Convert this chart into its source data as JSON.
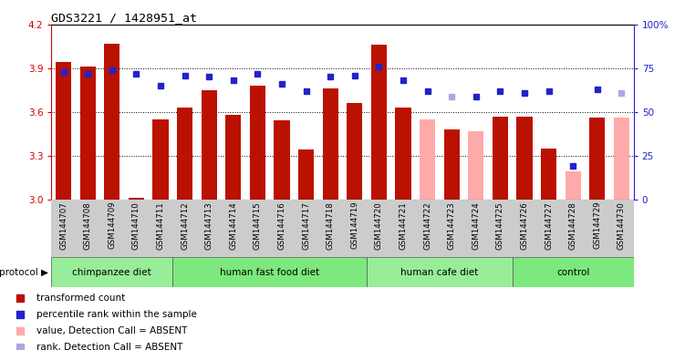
{
  "title": "GDS3221 / 1428951_at",
  "samples": [
    "GSM144707",
    "GSM144708",
    "GSM144709",
    "GSM144710",
    "GSM144711",
    "GSM144712",
    "GSM144713",
    "GSM144714",
    "GSM144715",
    "GSM144716",
    "GSM144717",
    "GSM144718",
    "GSM144719",
    "GSM144720",
    "GSM144721",
    "GSM144722",
    "GSM144723",
    "GSM144724",
    "GSM144725",
    "GSM144726",
    "GSM144727",
    "GSM144728",
    "GSM144729",
    "GSM144730"
  ],
  "bar_values": [
    3.94,
    3.91,
    4.07,
    3.01,
    3.55,
    3.63,
    3.75,
    3.58,
    3.78,
    3.54,
    3.34,
    3.76,
    3.66,
    4.06,
    3.63,
    3.55,
    3.48,
    3.47,
    3.57,
    3.57,
    3.35,
    3.19,
    3.56,
    3.56
  ],
  "rank_values": [
    73,
    72,
    74,
    72,
    65,
    71,
    70,
    68,
    72,
    66,
    62,
    70,
    71,
    76,
    68,
    62,
    59,
    59,
    62,
    61,
    62,
    19,
    63,
    61
  ],
  "absent_value": [
    false,
    false,
    false,
    false,
    false,
    false,
    false,
    false,
    false,
    false,
    false,
    false,
    false,
    false,
    false,
    true,
    false,
    true,
    false,
    false,
    false,
    true,
    false,
    true
  ],
  "absent_rank": [
    false,
    false,
    false,
    false,
    false,
    false,
    false,
    false,
    false,
    false,
    false,
    false,
    false,
    false,
    false,
    false,
    true,
    false,
    false,
    false,
    false,
    false,
    false,
    true
  ],
  "group_starts": [
    0,
    5,
    13,
    19
  ],
  "group_ends": [
    5,
    13,
    19,
    24
  ],
  "group_labels": [
    "chimpanzee diet",
    "human fast food diet",
    "human cafe diet",
    "control"
  ],
  "group_colors": [
    "#98ee98",
    "#7de87d",
    "#98ee98",
    "#7de87d"
  ],
  "bar_color_present": "#bb1100",
  "bar_color_absent": "#ffaaaa",
  "rank_color_present": "#2222cc",
  "rank_color_absent": "#aaaadd",
  "ylim_left": [
    3.0,
    4.2
  ],
  "ylim_right": [
    0,
    100
  ],
  "yticks_left": [
    3.0,
    3.3,
    3.6,
    3.9,
    4.2
  ],
  "yticks_right": [
    0,
    25,
    50,
    75,
    100
  ],
  "ytick_labels_right": [
    "0",
    "25",
    "50",
    "75",
    "100%"
  ],
  "legend_items": [
    {
      "label": "transformed count",
      "color": "#bb1100"
    },
    {
      "label": "percentile rank within the sample",
      "color": "#2222cc"
    },
    {
      "label": "value, Detection Call = ABSENT",
      "color": "#ffaaaa"
    },
    {
      "label": "rank, Detection Call = ABSENT",
      "color": "#aaaadd"
    }
  ],
  "bar_width": 0.65,
  "grid_yticks": [
    3.3,
    3.6,
    3.9
  ],
  "xlabel_bg_color": "#cccccc",
  "spine_color_left": "#cc0000",
  "spine_color_right": "#2222cc"
}
